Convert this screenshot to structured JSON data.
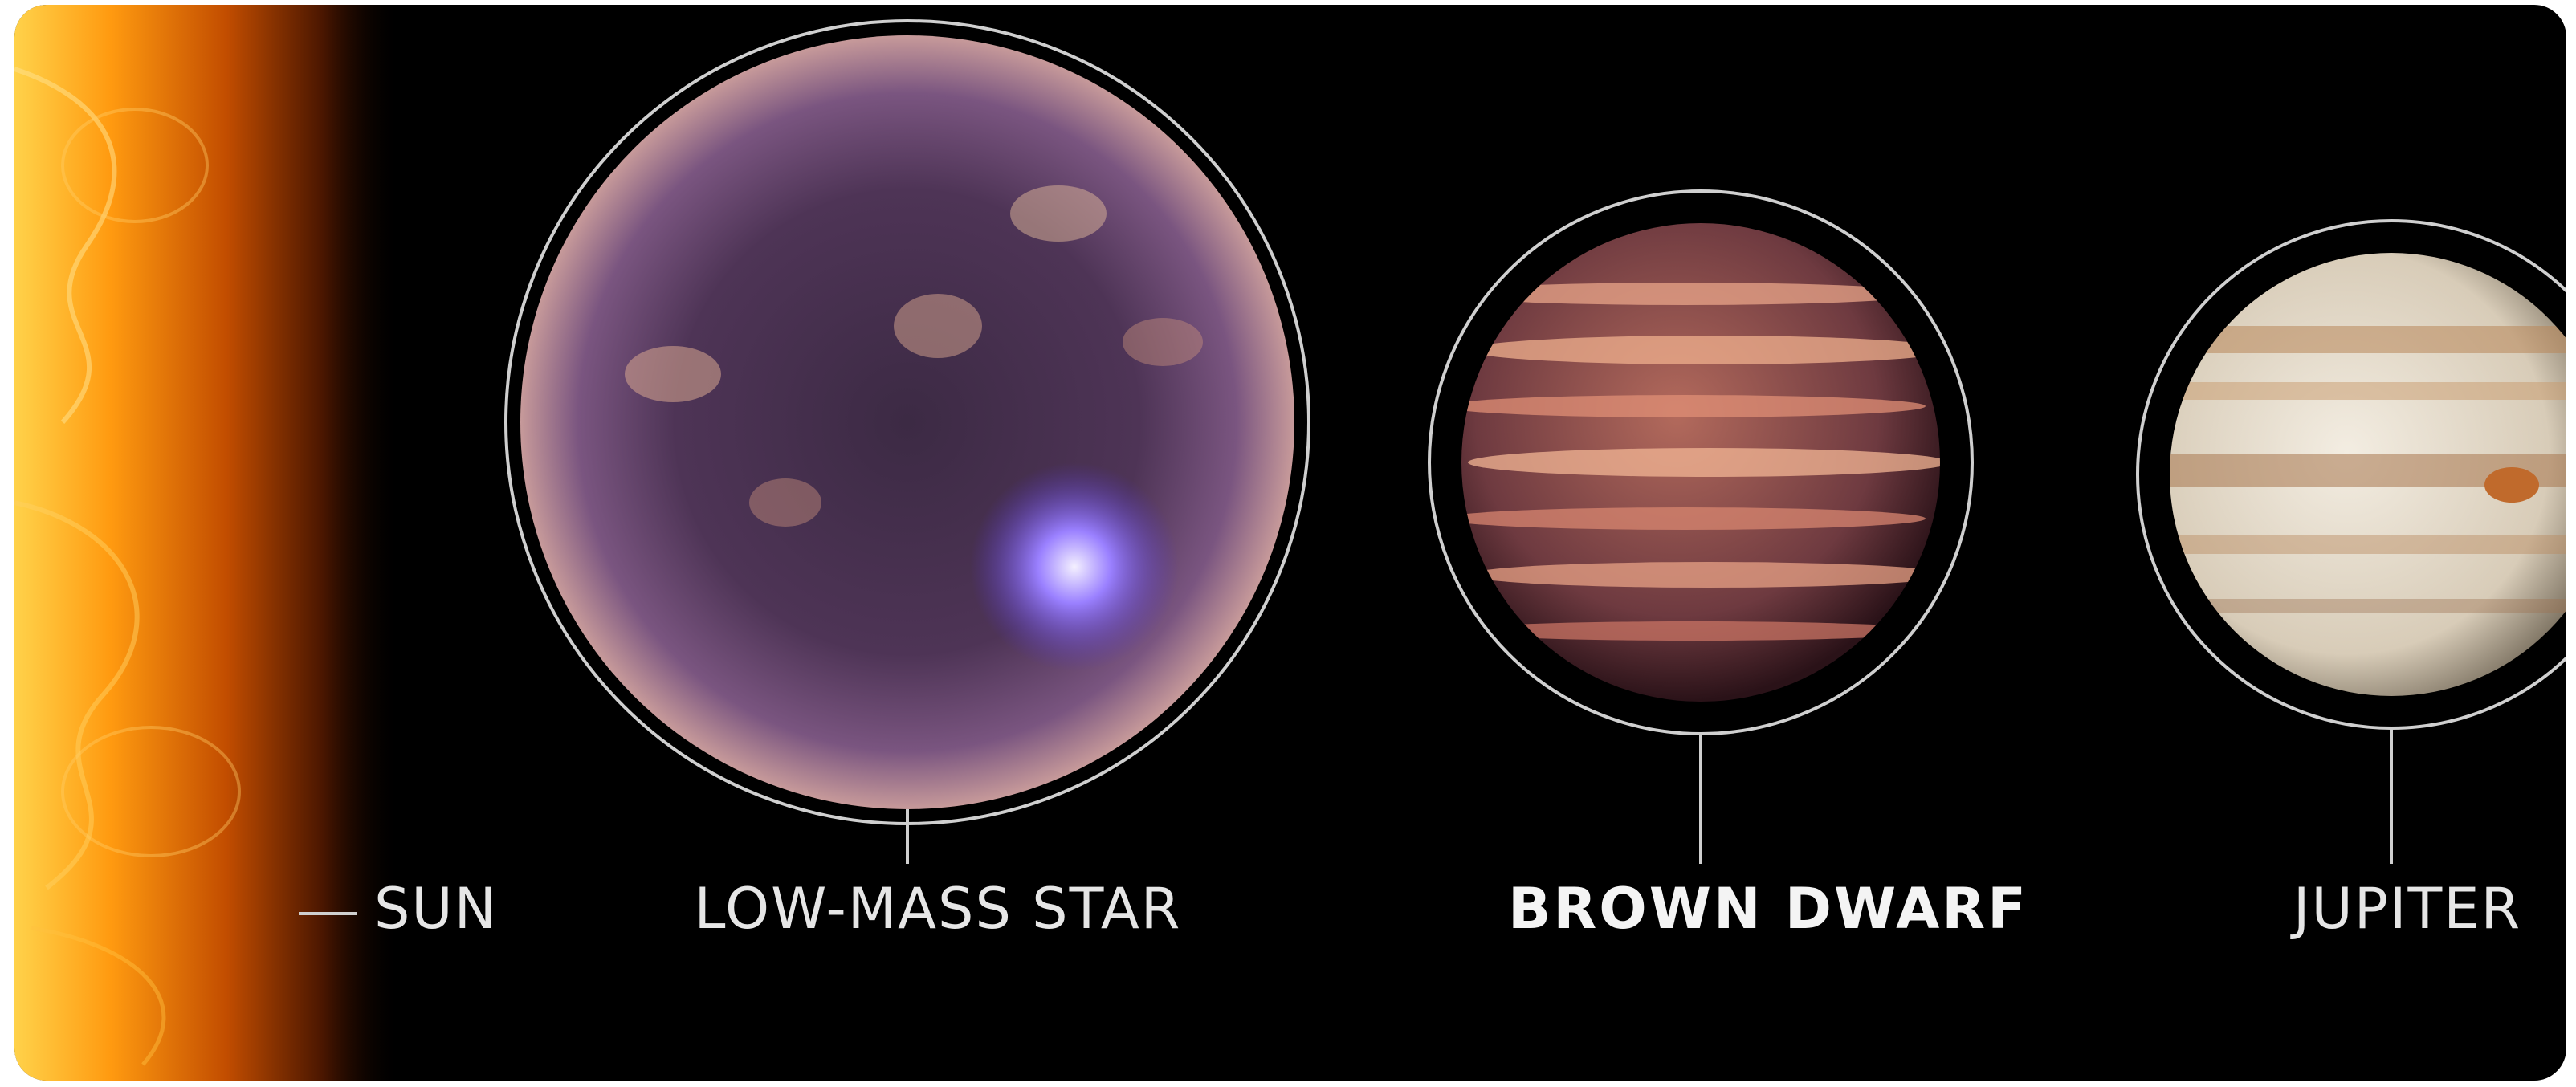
{
  "labels": {
    "sun": "SUN",
    "low_mass_star": "LOW-MASS STAR",
    "brown_dwarf": "BROWN DWARF",
    "jupiter": "JUPITER"
  },
  "colors": {
    "background": "#000000",
    "sun": "#ff8c00",
    "low_mass_star": "#7a4f86",
    "brown_dwarf": "#8a4a4a",
    "jupiter": "#e8e0d0",
    "label_text": "#e6e6e6",
    "outline": "#cfcfcf"
  }
}
